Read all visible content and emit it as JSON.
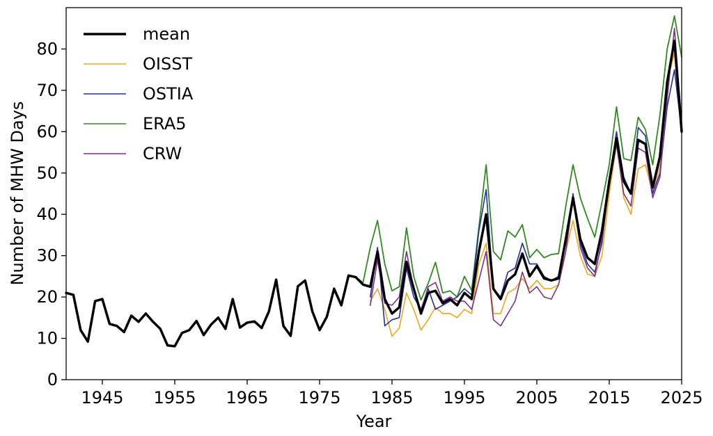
{
  "chart_data": {
    "type": "line",
    "title": "",
    "xlabel": "Year",
    "ylabel": "Number of MHW Days",
    "xlim": [
      1940,
      2025
    ],
    "ylim": [
      0,
      90
    ],
    "xticks": [
      1945,
      1955,
      1965,
      1975,
      1985,
      1995,
      2005,
      2015,
      2025
    ],
    "yticks": [
      0,
      10,
      20,
      30,
      40,
      50,
      60,
      70,
      80
    ],
    "grid": false,
    "legend_position": "top-left",
    "series": [
      {
        "name": "ERA5",
        "color": "#2e8b1f",
        "x": [
          1940,
          1941,
          1942,
          1943,
          1944,
          1945,
          1946,
          1947,
          1948,
          1949,
          1950,
          1951,
          1952,
          1953,
          1954,
          1955,
          1956,
          1957,
          1958,
          1959,
          1960,
          1961,
          1962,
          1963,
          1964,
          1965,
          1966,
          1967,
          1968,
          1969,
          1970,
          1971,
          1972,
          1973,
          1974,
          1975,
          1976,
          1977,
          1978,
          1979,
          1980,
          1981,
          1982,
          1983,
          1984,
          1985,
          1986,
          1987,
          1988,
          1989,
          1990,
          1991,
          1992,
          1993,
          1994,
          1995,
          1996,
          1997,
          1998,
          1999,
          2000,
          2001,
          2002,
          2003,
          2004,
          2005,
          2006,
          2007,
          2008,
          2009,
          2010,
          2011,
          2012,
          2013,
          2014,
          2015,
          2016,
          2017,
          2018,
          2019,
          2020,
          2021,
          2022,
          2023,
          2024,
          2025
        ],
        "values": [
          21,
          20.5,
          12,
          9.2,
          19,
          19.5,
          13.5,
          13,
          11.5,
          15.5,
          14,
          16,
          14,
          12.3,
          8.3,
          8.1,
          11.3,
          12,
          14.2,
          10.8,
          13.3,
          15,
          12.3,
          19.5,
          12.6,
          13.8,
          14.1,
          12.5,
          16.5,
          24.2,
          13,
          10.6,
          22.6,
          24,
          16.5,
          12,
          15.2,
          22,
          18,
          25.2,
          24.8,
          23.5,
          32,
          38.5,
          28,
          21.5,
          22.5,
          36.7,
          25,
          19.3,
          23.3,
          28.4,
          21,
          21.5,
          20,
          25,
          21.6,
          37,
          52,
          31,
          29,
          36,
          34.5,
          37.5,
          29.5,
          31.5,
          29.5,
          30.3,
          30.5,
          42,
          52,
          44,
          39,
          34.5,
          43,
          52,
          66,
          53.5,
          53,
          63.5,
          60.5,
          52,
          64,
          80,
          88,
          78
        ]
      },
      {
        "name": "OISST",
        "color": "#f0a818",
        "x": [
          1982,
          1983,
          1984,
          1985,
          1986,
          1987,
          1988,
          1989,
          1990,
          1991,
          1992,
          1993,
          1994,
          1995,
          1996,
          1997,
          1998,
          1999,
          2000,
          2001,
          2002,
          2003,
          2004,
          2005,
          2006,
          2007,
          2008,
          2009,
          2010,
          2011,
          2012,
          2013,
          2014,
          2015,
          2016,
          2017,
          2018,
          2019,
          2020,
          2021,
          2022,
          2023,
          2024,
          2025
        ],
        "values": [
          19,
          22,
          17,
          10.5,
          12.5,
          21,
          17,
          12,
          14.5,
          17.5,
          16,
          16,
          15,
          17,
          16,
          28,
          33,
          16,
          16,
          21,
          22,
          24.5,
          22,
          24,
          22,
          22,
          23,
          31,
          38.5,
          30,
          25.5,
          25,
          30,
          45,
          57,
          44,
          40,
          51,
          52,
          45,
          52,
          72,
          79,
          60
        ]
      },
      {
        "name": "OSTIA",
        "color": "#1f2f9e",
        "x": [
          1982,
          1983,
          1984,
          1985,
          1986,
          1987,
          1988,
          1989,
          1990,
          1991,
          1992,
          1993,
          1994,
          1995,
          1996,
          1997,
          1998,
          1999,
          2000,
          2001,
          2002,
          2003,
          2004,
          2005,
          2006,
          2007,
          2008,
          2009,
          2010,
          2011,
          2012,
          2013,
          2014,
          2015,
          2016,
          2017,
          2018,
          2019,
          2020,
          2021,
          2022,
          2023,
          2024,
          2025
        ],
        "values": [
          20,
          32,
          13,
          14.5,
          15,
          27,
          20,
          17,
          22,
          17,
          18,
          19,
          20,
          22,
          20.5,
          36,
          46,
          22,
          20,
          26,
          27,
          33,
          28,
          28,
          25,
          24,
          25,
          33,
          45,
          33,
          28,
          26,
          33,
          48,
          60,
          49,
          45,
          61,
          59,
          45,
          50,
          66,
          75,
          60
        ]
      },
      {
        "name": "CRW",
        "color": "#7d2e8e",
        "x": [
          1982,
          1983,
          1984,
          1985,
          1986,
          1987,
          1988,
          1989,
          1990,
          1991,
          1992,
          1993,
          1994,
          1995,
          1996,
          1997,
          1998,
          1999,
          2000,
          2001,
          2002,
          2003,
          2004,
          2005,
          2006,
          2007,
          2008,
          2009,
          2010,
          2011,
          2012,
          2013,
          2014,
          2015,
          2016,
          2017,
          2018,
          2019,
          2020,
          2021,
          2022,
          2023,
          2024,
          2025
        ],
        "values": [
          18,
          29,
          18.5,
          18,
          20,
          31,
          22,
          16.5,
          22.5,
          23.5,
          19,
          20,
          19,
          19,
          17,
          24,
          31,
          14.5,
          13,
          16,
          19,
          26,
          21,
          22.5,
          20,
          19.5,
          23,
          31,
          44,
          32,
          27,
          25,
          34,
          47,
          57,
          45,
          42,
          56,
          55,
          44,
          49,
          68,
          85,
          62
        ]
      },
      {
        "name": "mean",
        "color": "#000000",
        "x": [
          1940,
          1941,
          1942,
          1943,
          1944,
          1945,
          1946,
          1947,
          1948,
          1949,
          1950,
          1951,
          1952,
          1953,
          1954,
          1955,
          1956,
          1957,
          1958,
          1959,
          1960,
          1961,
          1962,
          1963,
          1964,
          1965,
          1966,
          1967,
          1968,
          1969,
          1970,
          1971,
          1972,
          1973,
          1974,
          1975,
          1976,
          1977,
          1978,
          1979,
          1980,
          1981,
          1982,
          1983,
          1984,
          1985,
          1986,
          1987,
          1988,
          1989,
          1990,
          1991,
          1992,
          1993,
          1994,
          1995,
          1996,
          1997,
          1998,
          1999,
          2000,
          2001,
          2002,
          2003,
          2004,
          2005,
          2006,
          2007,
          2008,
          2009,
          2010,
          2011,
          2012,
          2013,
          2014,
          2015,
          2016,
          2017,
          2018,
          2019,
          2020,
          2021,
          2022,
          2023,
          2024,
          2025
        ],
        "values": [
          21,
          20.5,
          12,
          9.2,
          19,
          19.5,
          13.5,
          13,
          11.5,
          15.5,
          14,
          16,
          14,
          12.3,
          8.3,
          8.1,
          11.3,
          12,
          14.2,
          10.8,
          13.3,
          15,
          12.3,
          19.5,
          12.6,
          13.8,
          14.1,
          12.5,
          16.5,
          24.2,
          13,
          10.6,
          22.6,
          24,
          16.5,
          12,
          15.2,
          22,
          18,
          25.2,
          24.8,
          23,
          22.5,
          31,
          19.5,
          16,
          17.5,
          28.5,
          22,
          16,
          21,
          21.5,
          18.5,
          19.5,
          18,
          21,
          19.5,
          31,
          40,
          22,
          19.5,
          24,
          25.5,
          30.5,
          25,
          27.5,
          24.5,
          24,
          24.5,
          34,
          44,
          34,
          29.5,
          28,
          36,
          48,
          58.5,
          48,
          45,
          58,
          57,
          46.5,
          54,
          72,
          82,
          60
        ]
      }
    ],
    "legend": [
      {
        "name": "mean",
        "color": "#000000",
        "width": 3.5
      },
      {
        "name": "OISST",
        "color": "#f0a818",
        "width": 1.6
      },
      {
        "name": "OSTIA",
        "color": "#1f2f9e",
        "width": 1.6
      },
      {
        "name": "ERA5",
        "color": "#2e8b1f",
        "width": 1.6
      },
      {
        "name": "CRW",
        "color": "#7d2e8e",
        "width": 1.6
      }
    ]
  }
}
